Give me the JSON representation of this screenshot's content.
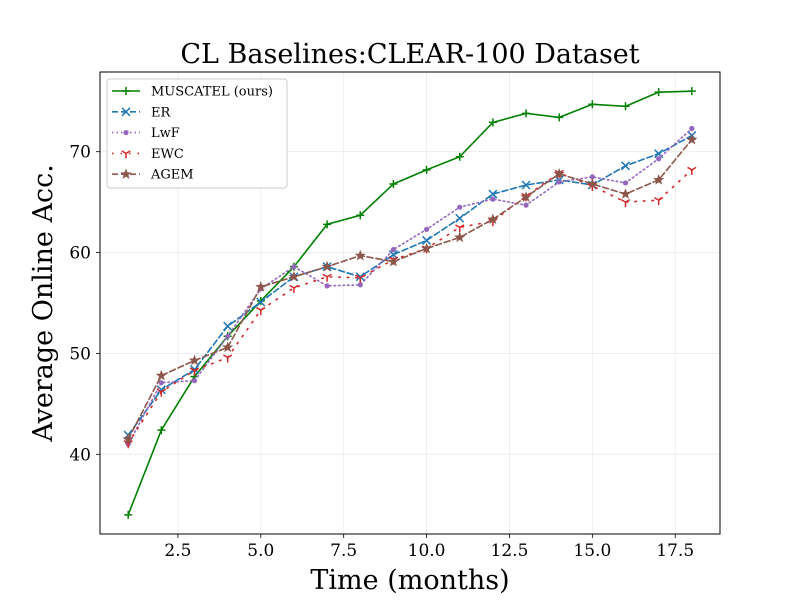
{
  "chart_data": {
    "type": "line",
    "title": "CL Baselines:CLEAR-100 Dataset",
    "xlabel": "Time (months)",
    "ylabel": "Average Online Acc.",
    "xlim": [
      0.15,
      18.85
    ],
    "ylim": [
      32.1,
      77.9
    ],
    "xticks": [
      2.5,
      5.0,
      7.5,
      10.0,
      12.5,
      15.0,
      17.5
    ],
    "xtick_labels": [
      "2.5",
      "5.0",
      "7.5",
      "10.0",
      "12.5",
      "15.0",
      "17.5"
    ],
    "yticks": [
      40,
      50,
      60,
      70
    ],
    "ytick_labels": [
      "40",
      "50",
      "60",
      "70"
    ],
    "grid": true,
    "legend_position": "upper-left",
    "x": [
      1,
      2,
      3,
      4,
      5,
      6,
      7,
      8,
      9,
      10,
      11,
      12,
      13,
      14,
      15,
      16,
      17,
      18
    ],
    "series": [
      {
        "name": "MUSCATEL (ours)",
        "color": "#008000",
        "dash": "solid",
        "marker": "plus",
        "values": [
          34.0,
          42.4,
          47.7,
          51.7,
          55.2,
          58.6,
          62.8,
          63.7,
          66.8,
          68.2,
          69.5,
          72.9,
          73.8,
          73.4,
          74.7,
          74.5,
          75.9,
          76.0
        ]
      },
      {
        "name": "ER",
        "color": "#1f77b4",
        "dash": "dashed",
        "marker": "x",
        "values": [
          41.9,
          46.4,
          48.4,
          52.7,
          55.1,
          57.6,
          58.6,
          57.6,
          59.8,
          61.2,
          63.4,
          65.8,
          66.7,
          67.2,
          66.7,
          68.6,
          69.8,
          71.6
        ]
      },
      {
        "name": "LwF",
        "color": "#9467bd",
        "dash": "dotted",
        "marker": "dot",
        "values": [
          41.0,
          47.1,
          47.3,
          51.7,
          56.4,
          58.6,
          56.7,
          56.8,
          60.3,
          62.3,
          64.5,
          65.3,
          64.7,
          67.0,
          67.5,
          66.9,
          69.3,
          72.3
        ]
      },
      {
        "name": "EWC",
        "color": "#d62728",
        "dash": "loosely-dotted",
        "marker": "tri-down",
        "values": [
          41.1,
          46.2,
          48.3,
          49.6,
          54.3,
          56.5,
          57.6,
          57.5,
          59.3,
          60.4,
          62.5,
          63.1,
          65.6,
          67.9,
          66.6,
          65.0,
          65.2,
          68.2
        ]
      },
      {
        "name": "AGEM",
        "color": "#8c564b",
        "dash": "dashed",
        "marker": "star",
        "values": [
          41.5,
          47.8,
          49.3,
          50.6,
          56.6,
          57.6,
          58.6,
          59.7,
          59.1,
          60.4,
          61.5,
          63.3,
          65.5,
          67.8,
          66.8,
          65.8,
          67.2,
          71.2
        ]
      }
    ]
  }
}
